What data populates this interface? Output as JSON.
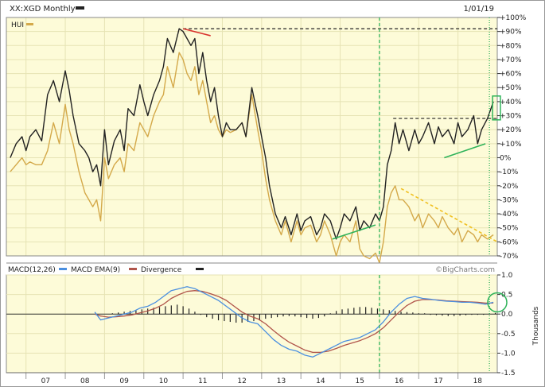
{
  "header": {
    "symbol_label": "XX:XGD Monthly",
    "comparison_label": "HUI",
    "date_label": "1/01/19"
  },
  "macd_header": {
    "macd_label": "MACD(12,26)",
    "ema_label": "MACD EMA(9)",
    "divergence_label": "Divergence"
  },
  "watermark": "©BigCharts.com",
  "colors": {
    "background": "#fdfbd8",
    "grid": "#e6e3b4",
    "xgd_line": "#222222",
    "hui_line": "#d4a94a",
    "macd_line": "#4a8fe0",
    "ema_line": "#b0544a",
    "divergence": "#222222",
    "highlight_green": "#2fb35a",
    "trend_red": "#d9322c",
    "trend_yellow": "#f0c020"
  },
  "chart_data": [
    {
      "type": "line",
      "title": "XX:XGD Monthly",
      "x_tick_labels": [
        "07",
        "08",
        "09",
        "10",
        "11",
        "12",
        "13",
        "14",
        "15",
        "16",
        "17",
        "18"
      ],
      "y_tick_labels": [
        "+100%",
        "+90%",
        "+80%",
        "+70%",
        "+60%",
        "+50%",
        "+40%",
        "+30%",
        "+20%",
        "+10%",
        "0%",
        "-10%",
        "-20%",
        "-30%",
        "-40%",
        "-50%",
        "-60%",
        "-70%"
      ],
      "ylim": [
        -70,
        100
      ],
      "y_unit": "%",
      "xlim": [
        2006.5,
        2019.0
      ],
      "grid": true,
      "series": [
        {
          "name": "XX:XGD Monthly",
          "x": [
            2006.6,
            2006.75,
            2006.9,
            2007.0,
            2007.1,
            2007.25,
            2007.4,
            2007.55,
            2007.7,
            2007.85,
            2008.0,
            2008.1,
            2008.2,
            2008.35,
            2008.5,
            2008.6,
            2008.7,
            2008.8,
            2008.9,
            2009.0,
            2009.1,
            2009.25,
            2009.4,
            2009.5,
            2009.6,
            2009.75,
            2009.9,
            2010.0,
            2010.1,
            2010.25,
            2010.4,
            2010.5,
            2010.6,
            2010.75,
            2010.9,
            2011.0,
            2011.1,
            2011.2,
            2011.3,
            2011.4,
            2011.5,
            2011.6,
            2011.7,
            2011.8,
            2011.9,
            2012.0,
            2012.1,
            2012.2,
            2012.35,
            2012.5,
            2012.6,
            2012.75,
            2012.9,
            2013.0,
            2013.1,
            2013.2,
            2013.35,
            2013.5,
            2013.6,
            2013.75,
            2013.9,
            2014.0,
            2014.1,
            2014.25,
            2014.4,
            2014.5,
            2014.6,
            2014.75,
            2014.9,
            2015.0,
            2015.1,
            2015.25,
            2015.4,
            2015.5,
            2015.6,
            2015.75,
            2015.9,
            2016.0,
            2016.1,
            2016.2,
            2016.3,
            2016.4,
            2016.5,
            2016.6,
            2016.75,
            2016.9,
            2017.0,
            2017.1,
            2017.25,
            2017.4,
            2017.5,
            2017.6,
            2017.75,
            2017.9,
            2018.0,
            2018.1,
            2018.25,
            2018.4,
            2018.5,
            2018.6,
            2018.75,
            2018.9
          ],
          "y": [
            0,
            10,
            15,
            5,
            15,
            20,
            12,
            45,
            55,
            40,
            62,
            48,
            30,
            10,
            5,
            0,
            -10,
            -5,
            -20,
            20,
            -5,
            12,
            20,
            5,
            35,
            30,
            52,
            40,
            30,
            45,
            55,
            65,
            85,
            75,
            92,
            90,
            85,
            80,
            85,
            60,
            75,
            55,
            40,
            50,
            30,
            15,
            25,
            20,
            20,
            25,
            15,
            50,
            30,
            15,
            0,
            -20,
            -40,
            -50,
            -42,
            -55,
            -40,
            -52,
            -45,
            -42,
            -55,
            -50,
            -40,
            -45,
            -58,
            -50,
            -40,
            -45,
            -35,
            -52,
            -45,
            -50,
            -40,
            -45,
            -35,
            -5,
            5,
            25,
            10,
            20,
            5,
            20,
            10,
            15,
            25,
            10,
            22,
            15,
            20,
            10,
            25,
            15,
            20,
            30,
            10,
            20,
            28,
            40
          ],
          "color": "#222222"
        },
        {
          "name": "HUI",
          "x": [
            2006.6,
            2006.75,
            2006.9,
            2007.0,
            2007.1,
            2007.25,
            2007.4,
            2007.55,
            2007.7,
            2007.85,
            2008.0,
            2008.1,
            2008.2,
            2008.35,
            2008.5,
            2008.6,
            2008.7,
            2008.8,
            2008.9,
            2009.0,
            2009.1,
            2009.25,
            2009.4,
            2009.5,
            2009.6,
            2009.75,
            2009.9,
            2010.0,
            2010.1,
            2010.25,
            2010.4,
            2010.5,
            2010.6,
            2010.75,
            2010.9,
            2011.0,
            2011.1,
            2011.2,
            2011.3,
            2011.4,
            2011.5,
            2011.6,
            2011.7,
            2011.8,
            2011.9,
            2012.0,
            2012.1,
            2012.2,
            2012.35,
            2012.5,
            2012.6,
            2012.75,
            2012.9,
            2013.0,
            2013.1,
            2013.2,
            2013.35,
            2013.5,
            2013.6,
            2013.75,
            2013.9,
            2014.0,
            2014.1,
            2014.25,
            2014.4,
            2014.5,
            2014.6,
            2014.75,
            2014.9,
            2015.0,
            2015.1,
            2015.25,
            2015.4,
            2015.5,
            2015.6,
            2015.75,
            2015.9,
            2016.0,
            2016.1,
            2016.2,
            2016.3,
            2016.4,
            2016.5,
            2016.6,
            2016.75,
            2016.9,
            2017.0,
            2017.1,
            2017.25,
            2017.4,
            2017.5,
            2017.6,
            2017.75,
            2017.9,
            2018.0,
            2018.1,
            2018.25,
            2018.4,
            2018.5,
            2018.6,
            2018.75,
            2018.9
          ],
          "y": [
            -10,
            -5,
            0,
            -5,
            -3,
            -5,
            -5,
            5,
            25,
            10,
            38,
            20,
            10,
            -10,
            -25,
            -30,
            -35,
            -30,
            -45,
            0,
            -15,
            -5,
            0,
            -10,
            10,
            5,
            25,
            20,
            15,
            30,
            40,
            45,
            65,
            50,
            75,
            70,
            60,
            55,
            65,
            45,
            55,
            40,
            25,
            30,
            20,
            15,
            20,
            18,
            20,
            25,
            15,
            45,
            20,
            5,
            -15,
            -30,
            -45,
            -55,
            -45,
            -60,
            -45,
            -55,
            -50,
            -48,
            -60,
            -55,
            -45,
            -55,
            -70,
            -60,
            -55,
            -60,
            -45,
            -65,
            -70,
            -72,
            -68,
            -75,
            -60,
            -35,
            -25,
            -20,
            -30,
            -30,
            -35,
            -45,
            -40,
            -50,
            -40,
            -45,
            -50,
            -42,
            -50,
            -55,
            -50,
            -60,
            -52,
            -55,
            -60,
            -55,
            -58,
            -55
          ],
          "color": "#d4a94a"
        }
      ],
      "annotations": [
        {
          "kind": "level",
          "y": 92,
          "x_from": 2011.0,
          "x_to": 2019.0,
          "color": "#222222",
          "style": "dashed"
        },
        {
          "kind": "level",
          "y": 28,
          "x_from": 2016.35,
          "x_to": 2019.0,
          "color": "#222222",
          "style": "dashed"
        },
        {
          "kind": "trendline",
          "x1": 2011.0,
          "y1": 92,
          "x2": 2011.7,
          "y2": 87,
          "color": "#d9322c",
          "style": "solid"
        },
        {
          "kind": "trendline",
          "x1": 2014.8,
          "y1": -58,
          "x2": 2015.9,
          "y2": -48,
          "color": "#2fb35a",
          "style": "solid"
        },
        {
          "kind": "trendline",
          "x1": 2017.65,
          "y1": 0,
          "x2": 2018.7,
          "y2": 10,
          "color": "#2fb35a",
          "style": "solid"
        },
        {
          "kind": "trendline",
          "x1": 2016.55,
          "y1": -22,
          "x2": 2019.0,
          "y2": -60,
          "color": "#f0c020",
          "style": "dashed"
        },
        {
          "kind": "vline",
          "x": 2016.0,
          "color": "#2fb35a",
          "style": "dashed"
        },
        {
          "kind": "vline",
          "x": 2018.8,
          "color": "#2fb35a",
          "style": "dotted"
        },
        {
          "kind": "box",
          "x1": 2018.88,
          "y1": 27,
          "x2": 2019.08,
          "y2": 44,
          "color": "#2fb35a"
        }
      ]
    },
    {
      "type": "line",
      "title": "MACD(12,26)",
      "ylabel": "Thousands",
      "ylim": [
        -1.5,
        1.0
      ],
      "y_tick_labels": [
        "1.0",
        "0.5",
        "0.0",
        "-0.5",
        "-1.0",
        "-1.5"
      ],
      "grid": true,
      "series": [
        {
          "name": "MACD(12,26)",
          "x": [
            2008.75,
            2008.9,
            2009.1,
            2009.3,
            2009.5,
            2009.7,
            2009.9,
            2010.1,
            2010.3,
            2010.5,
            2010.7,
            2010.9,
            2011.1,
            2011.3,
            2011.5,
            2011.7,
            2011.9,
            2012.1,
            2012.3,
            2012.5,
            2012.7,
            2012.9,
            2013.1,
            2013.3,
            2013.5,
            2013.7,
            2013.9,
            2014.1,
            2014.3,
            2014.5,
            2014.7,
            2014.9,
            2015.1,
            2015.3,
            2015.5,
            2015.7,
            2015.9,
            2016.1,
            2016.3,
            2016.5,
            2016.7,
            2016.9,
            2017.1,
            2017.3,
            2017.5,
            2017.7,
            2017.9,
            2018.1,
            2018.3,
            2018.5,
            2018.7,
            2018.9
          ],
          "y": [
            0.05,
            -0.15,
            -0.1,
            -0.05,
            0.0,
            0.05,
            0.15,
            0.2,
            0.3,
            0.45,
            0.6,
            0.65,
            0.7,
            0.65,
            0.55,
            0.45,
            0.35,
            0.2,
            0.05,
            -0.1,
            -0.2,
            -0.25,
            -0.45,
            -0.65,
            -0.8,
            -0.9,
            -0.95,
            -1.05,
            -1.1,
            -1.0,
            -0.9,
            -0.8,
            -0.7,
            -0.65,
            -0.6,
            -0.5,
            -0.4,
            -0.2,
            0.05,
            0.25,
            0.4,
            0.45,
            0.4,
            0.38,
            0.35,
            0.33,
            0.32,
            0.3,
            0.3,
            0.28,
            0.25,
            0.3
          ],
          "color": "#4a8fe0"
        },
        {
          "name": "MACD EMA(9)",
          "x": [
            2008.75,
            2008.9,
            2009.1,
            2009.3,
            2009.5,
            2009.7,
            2009.9,
            2010.1,
            2010.3,
            2010.5,
            2010.7,
            2010.9,
            2011.1,
            2011.3,
            2011.5,
            2011.7,
            2011.9,
            2012.1,
            2012.3,
            2012.5,
            2012.7,
            2012.9,
            2013.1,
            2013.3,
            2013.5,
            2013.7,
            2013.9,
            2014.1,
            2014.3,
            2014.5,
            2014.7,
            2014.9,
            2015.1,
            2015.3,
            2015.5,
            2015.7,
            2015.9,
            2016.1,
            2016.3,
            2016.5,
            2016.7,
            2016.9,
            2017.1,
            2017.3,
            2017.5,
            2017.7,
            2017.9,
            2018.1,
            2018.3,
            2018.5,
            2018.7,
            2018.9
          ],
          "y": [
            0.0,
            -0.05,
            -0.08,
            -0.07,
            -0.05,
            -0.02,
            0.03,
            0.08,
            0.15,
            0.25,
            0.4,
            0.5,
            0.58,
            0.6,
            0.58,
            0.52,
            0.45,
            0.35,
            0.2,
            0.05,
            -0.05,
            -0.12,
            -0.25,
            -0.42,
            -0.58,
            -0.72,
            -0.82,
            -0.92,
            -0.98,
            -0.98,
            -0.95,
            -0.88,
            -0.8,
            -0.74,
            -0.68,
            -0.6,
            -0.5,
            -0.35,
            -0.15,
            0.05,
            0.22,
            0.33,
            0.37,
            0.37,
            0.36,
            0.34,
            0.33,
            0.32,
            0.31,
            0.3,
            0.28,
            0.28
          ],
          "color": "#b0544a"
        },
        {
          "name": "Divergence",
          "kind": "bars",
          "x": [
            2009.2,
            2009.35,
            2009.5,
            2009.65,
            2009.8,
            2009.95,
            2010.1,
            2010.25,
            2010.4,
            2010.55,
            2010.7,
            2010.85,
            2011.0,
            2011.15,
            2011.3,
            2011.45,
            2011.6,
            2011.75,
            2011.9,
            2012.05,
            2012.2,
            2012.35,
            2012.5,
            2012.65,
            2012.8,
            2012.95,
            2013.1,
            2013.25,
            2013.4,
            2013.55,
            2013.7,
            2013.85,
            2014.0,
            2014.15,
            2014.3,
            2014.45,
            2014.6,
            2014.75,
            2014.9,
            2015.05,
            2015.2,
            2015.35,
            2015.5,
            2015.65,
            2015.8,
            2015.95,
            2016.1,
            2016.25,
            2016.4,
            2016.55,
            2016.7,
            2016.85,
            2017.0,
            2017.15,
            2017.3,
            2017.45,
            2017.6,
            2017.75,
            2017.9,
            2018.05,
            2018.2,
            2018.35,
            2018.5,
            2018.65,
            2018.8,
            2018.95
          ],
          "y": [
            0.02,
            0.04,
            0.06,
            0.08,
            0.1,
            0.12,
            0.14,
            0.16,
            0.18,
            0.2,
            0.22,
            0.24,
            0.2,
            0.14,
            0.06,
            -0.02,
            -0.08,
            -0.12,
            -0.16,
            -0.18,
            -0.2,
            -0.22,
            -0.22,
            -0.2,
            -0.18,
            -0.15,
            -0.12,
            -0.1,
            -0.08,
            -0.06,
            -0.05,
            -0.06,
            -0.08,
            -0.1,
            -0.12,
            -0.1,
            -0.06,
            0.02,
            0.08,
            0.12,
            0.14,
            0.16,
            0.18,
            0.18,
            0.16,
            0.14,
            0.12,
            0.1,
            0.08,
            0.06,
            0.05,
            0.04,
            0.02,
            0.02,
            -0.02,
            -0.03,
            -0.04,
            -0.05,
            -0.05,
            -0.04,
            -0.03,
            -0.02,
            -0.02,
            -0.02,
            0.02,
            0.03
          ],
          "color": "#222222"
        }
      ],
      "annotations": [
        {
          "kind": "vline",
          "x": 2016.0,
          "color": "#2fb35a",
          "style": "dashed"
        },
        {
          "kind": "vline",
          "x": 2018.8,
          "color": "#2fb35a",
          "style": "dotted"
        },
        {
          "kind": "circle",
          "x": 2019.0,
          "y": 0.3,
          "color": "#2fb35a"
        }
      ]
    }
  ]
}
